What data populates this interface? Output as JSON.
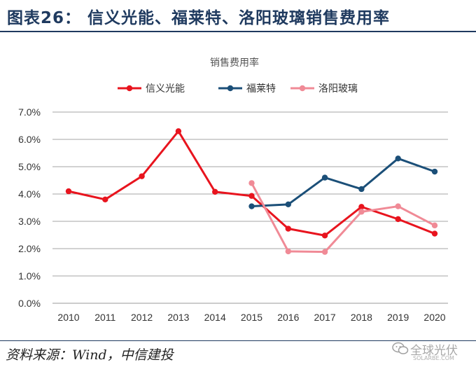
{
  "figure_title": "图表26：  信义光能、福莱特、洛阳玻璃销售费用率",
  "source_note": "资料来源：Wind，中信建投",
  "watermark": {
    "text": "全球光伏",
    "sub": "SOLARBE.COM",
    "icon": "wechat-icon"
  },
  "chart_data": {
    "type": "line",
    "title": "销售费用率",
    "xlabel": "",
    "ylabel": "",
    "x": [
      "2010",
      "2011",
      "2012",
      "2013",
      "2014",
      "2015",
      "2016",
      "2017",
      "2018",
      "2019",
      "2020"
    ],
    "ylim": [
      0,
      7
    ],
    "yticks": [
      "0.0%",
      "1.0%",
      "2.0%",
      "3.0%",
      "4.0%",
      "5.0%",
      "6.0%",
      "7.0%"
    ],
    "grid": true,
    "legend_position": "top-center",
    "series": [
      {
        "name": "信义光能",
        "color": "#e8141e",
        "values": [
          4.1,
          3.8,
          4.65,
          6.3,
          4.08,
          3.93,
          2.73,
          2.48,
          3.53,
          3.08,
          2.55
        ]
      },
      {
        "name": "福莱特",
        "color": "#1b4f78",
        "values": [
          null,
          null,
          null,
          null,
          null,
          3.55,
          3.62,
          4.6,
          4.18,
          5.3,
          4.82
        ]
      },
      {
        "name": "洛阳玻璃",
        "color": "#f08a96",
        "values": [
          null,
          null,
          null,
          null,
          null,
          4.4,
          1.9,
          1.88,
          3.35,
          3.55,
          2.85
        ]
      }
    ]
  }
}
